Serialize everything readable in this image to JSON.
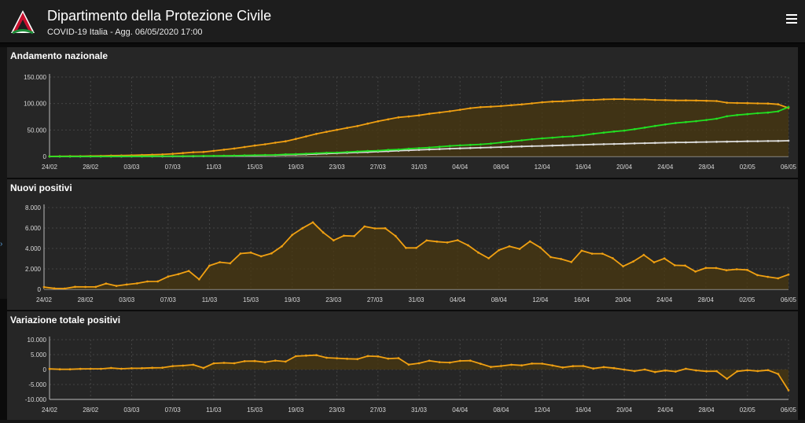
{
  "header": {
    "title": "Dipartimento della Protezione Civile",
    "subtitle": "COVID-19 Italia - Agg. 06/05/2020 17:00"
  },
  "icons": {
    "logo": "protezione-civile-logo-icon",
    "menu": "hamburger-menu-icon"
  },
  "colors": {
    "orange": "#f0a012",
    "green": "#22e022",
    "white_line": "#dddddd",
    "fill": "#4a3810",
    "panel": "#262626",
    "grid": "#444444"
  },
  "chart_data": [
    {
      "type": "area",
      "title": "Andamento nazionale",
      "x_tick_labels": [
        "24/02",
        "28/02",
        "03/03",
        "07/03",
        "11/03",
        "15/03",
        "19/03",
        "23/03",
        "27/03",
        "31/03",
        "04/04",
        "08/04",
        "12/04",
        "16/04",
        "20/04",
        "24/04",
        "28/04",
        "02/05",
        "06/05"
      ],
      "y_tick_labels": [
        "0",
        "50.000",
        "100.000",
        "150.000"
      ],
      "ylim": [
        0,
        150000
      ],
      "series": [
        {
          "values": [
            221,
            311,
            385,
            588,
            821,
            1049,
            1577,
            1835,
            2263,
            2706,
            3296,
            3916,
            5061,
            6387,
            7985,
            8514,
            10590,
            12839,
            14955,
            17750,
            20603,
            23073,
            26062,
            28710,
            33190,
            37860,
            42681,
            46638,
            50418,
            54030,
            57521,
            62013,
            66414,
            70065,
            73880,
            75528,
            77635,
            80572,
            83049,
            85388,
            88274,
            91246,
            93187,
            94067,
            95262,
            96877,
            98273,
            100269,
            102253,
            103616,
            104291,
            105418,
            106607,
            106962,
            107771,
            108257,
            108237,
            107709,
            107699,
            106848,
            106527,
            105847,
            106103,
            105813,
            105205,
            104657,
            101551,
            100943,
            100704,
            100179,
            99980,
            98467,
            91528
          ]
        },
        {
          "values": [
            1,
            1,
            1,
            3,
            45,
            46,
            46,
            149,
            160,
            276,
            414,
            523,
            589,
            622,
            724,
            1004,
            1045,
            1258,
            1439,
            1966,
            2335,
            2749,
            2941,
            4025,
            4440,
            5129,
            6072,
            7024,
            7432,
            8326,
            9362,
            10361,
            10950,
            12384,
            13030,
            14620,
            15729,
            16847,
            18278,
            19758,
            20996,
            21815,
            22837,
            24392,
            26491,
            28470,
            30455,
            32534,
            34211,
            35435,
            37130,
            38092,
            40164,
            42727,
            44927,
            47055,
            48877,
            51600,
            54543,
            57576,
            60498,
            63120,
            64928,
            66624,
            68941,
            71252,
            75945,
            78249,
            79914,
            81654,
            82879,
            85231,
            93245
          ]
        },
        {
          "values": [
            7,
            10,
            12,
            17,
            21,
            29,
            34,
            52,
            79,
            107,
            148,
            197,
            233,
            366,
            463,
            631,
            827,
            1016,
            1266,
            1441,
            1809,
            2158,
            2503,
            2978,
            3405,
            4032,
            4825,
            5476,
            6077,
            6820,
            7503,
            8165,
            9134,
            10023,
            10779,
            11591,
            12428,
            13155,
            13915,
            14681,
            15362,
            15887,
            16523,
            17127,
            17669,
            18279,
            18849,
            19468,
            19899,
            20465,
            21067,
            21645,
            22170,
            22745,
            23227,
            23660,
            24114,
            24648,
            25085,
            25549,
            25969,
            26384,
            26644,
            26977,
            27359,
            27682,
            27967,
            28236,
            28710,
            28884,
            29079,
            29315,
            29684
          ]
        }
      ]
    },
    {
      "type": "area",
      "title": "Nuovi positivi",
      "x_tick_labels": [
        "24/02",
        "28/02",
        "03/03",
        "07/03",
        "11/03",
        "15/03",
        "19/03",
        "23/03",
        "27/03",
        "31/03",
        "04/04",
        "08/04",
        "12/04",
        "16/04",
        "20/04",
        "24/04",
        "28/04",
        "02/05",
        "06/05"
      ],
      "y_tick_labels": [
        "0",
        "2.000",
        "4.000",
        "6.000",
        "8.000"
      ],
      "ylim": [
        0,
        8000
      ],
      "series": [
        {
          "values": [
            221,
            93,
            78,
            250,
            238,
            240,
            566,
            342,
            466,
            587,
            769,
            778,
            1247,
            1492,
            1797,
            977,
            2313,
            2651,
            2547,
            3497,
            3590,
            3233,
            3526,
            4207,
            5322,
            5986,
            6557,
            5560,
            4789,
            5249,
            5210,
            6153,
            5959,
            5974,
            5217,
            4050,
            4053,
            4782,
            4668,
            4585,
            4805,
            4316,
            3599,
            3039,
            3836,
            4204,
            3951,
            4694,
            4092,
            3153,
            2972,
            2667,
            3786,
            3493,
            3491,
            3047,
            2256,
            2729,
            3370,
            2646,
            3021,
            2357,
            2324,
            1739,
            2091,
            2086,
            1872,
            1965,
            1900,
            1389,
            1221,
            1075,
            1444
          ]
        }
      ]
    },
    {
      "type": "area",
      "title": "Variazione totale positivi",
      "x_tick_labels": [
        "24/02",
        "28/02",
        "03/03",
        "07/03",
        "11/03",
        "15/03",
        "19/03",
        "23/03",
        "27/03",
        "31/03",
        "04/04",
        "08/04",
        "12/04",
        "16/04",
        "20/04",
        "24/04",
        "28/04",
        "02/05",
        "06/05"
      ],
      "y_tick_labels": [
        "-10.000",
        "-5.000",
        "0",
        "5.000",
        "10.000"
      ],
      "ylim": [
        -10000,
        10000
      ],
      "series": [
        {
          "values": [
            221,
            90,
            74,
            203,
            233,
            228,
            528,
            258,
            428,
            443,
            590,
            620,
            1145,
            1326,
            1598,
            529,
            2076,
            2249,
            2116,
            2795,
            2853,
            2470,
            2989,
            2648,
            4480,
            4670,
            4821,
            3957,
            3780,
            3612,
            3491,
            4492,
            4401,
            3651,
            3815,
            1648,
            2107,
            2937,
            2477,
            2339,
            2886,
            2972,
            1941,
            880,
            1195,
            1615,
            1396,
            1996,
            1984,
            1363,
            675,
            1127,
            1189,
            355,
            809,
            486,
            -20,
            -528,
            -10,
            -851,
            -321,
            -680,
            256,
            -290,
            -608,
            -548,
            -3106,
            -608,
            -239,
            -525,
            -199,
            -1513,
            -6939
          ]
        }
      ]
    }
  ]
}
